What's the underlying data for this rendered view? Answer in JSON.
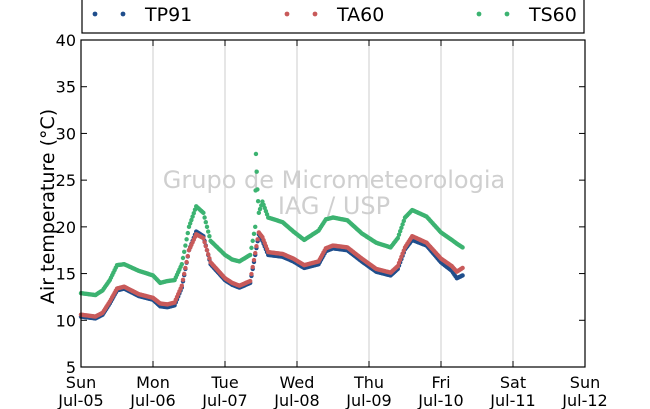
{
  "chart_data": {
    "type": "scatter",
    "ylabel": "Air temperature (°C)",
    "xlabel": "",
    "ylim": [
      5,
      40
    ],
    "xlim": [
      0,
      7
    ],
    "y_ticks": [
      5,
      10,
      15,
      20,
      25,
      30,
      35,
      40
    ],
    "x_ticks": [
      {
        "day": "Sun",
        "date": "Jul-05"
      },
      {
        "day": "Mon",
        "date": "Jul-06"
      },
      {
        "day": "Tue",
        "date": "Jul-07"
      },
      {
        "day": "Wed",
        "date": "Jul-08"
      },
      {
        "day": "Thu",
        "date": "Jul-09"
      },
      {
        "day": "Fri",
        "date": "Jul-10"
      },
      {
        "day": "Sat",
        "date": "Jul-11"
      },
      {
        "day": "Sun",
        "date": "Jul-12"
      }
    ],
    "grid": "vertical",
    "legend_position": "top",
    "watermark": [
      "Grupo de Micrometeorologia",
      "IAG / USP"
    ],
    "series": [
      {
        "name": "TP91",
        "color": "#1f4e8c",
        "points": [
          [
            0,
            10.4
          ],
          [
            0.2,
            10.2
          ],
          [
            0.3,
            10.6
          ],
          [
            0.4,
            11.8
          ],
          [
            0.5,
            13.2
          ],
          [
            0.6,
            13.4
          ],
          [
            0.8,
            12.6
          ],
          [
            1.0,
            12.2
          ],
          [
            1.1,
            11.5
          ],
          [
            1.2,
            11.4
          ],
          [
            1.3,
            11.6
          ],
          [
            1.4,
            13.5
          ],
          [
            1.5,
            17.5
          ],
          [
            1.6,
            19.5
          ],
          [
            1.7,
            19.0
          ],
          [
            1.8,
            16.0
          ],
          [
            2.0,
            14.3
          ],
          [
            2.1,
            13.8
          ],
          [
            2.2,
            13.5
          ],
          [
            2.35,
            14.0
          ],
          [
            2.42,
            17.0
          ],
          [
            2.47,
            19.2
          ],
          [
            2.52,
            18.5
          ],
          [
            2.6,
            17.0
          ],
          [
            2.8,
            16.8
          ],
          [
            2.95,
            16.3
          ],
          [
            3.1,
            15.6
          ],
          [
            3.3,
            16.0
          ],
          [
            3.4,
            17.4
          ],
          [
            3.5,
            17.7
          ],
          [
            3.7,
            17.5
          ],
          [
            3.9,
            16.3
          ],
          [
            4.1,
            15.2
          ],
          [
            4.3,
            14.8
          ],
          [
            4.4,
            15.5
          ],
          [
            4.5,
            17.6
          ],
          [
            4.6,
            18.6
          ],
          [
            4.8,
            18.0
          ],
          [
            5.0,
            16.2
          ],
          [
            5.15,
            15.3
          ],
          [
            5.22,
            14.5
          ],
          [
            5.3,
            14.8
          ]
        ]
      },
      {
        "name": "TA60",
        "color": "#c85a5a",
        "points": [
          [
            0,
            10.6
          ],
          [
            0.2,
            10.4
          ],
          [
            0.3,
            10.8
          ],
          [
            0.4,
            12.0
          ],
          [
            0.5,
            13.4
          ],
          [
            0.6,
            13.6
          ],
          [
            0.8,
            12.8
          ],
          [
            1.0,
            12.4
          ],
          [
            1.1,
            11.8
          ],
          [
            1.2,
            11.7
          ],
          [
            1.3,
            11.9
          ],
          [
            1.4,
            13.7
          ],
          [
            1.5,
            17.5
          ],
          [
            1.6,
            19.2
          ],
          [
            1.7,
            18.8
          ],
          [
            1.8,
            16.2
          ],
          [
            2.0,
            14.5
          ],
          [
            2.1,
            14.0
          ],
          [
            2.2,
            13.7
          ],
          [
            2.35,
            14.2
          ],
          [
            2.42,
            17.2
          ],
          [
            2.47,
            19.4
          ],
          [
            2.52,
            18.9
          ],
          [
            2.6,
            17.3
          ],
          [
            2.8,
            17.1
          ],
          [
            2.95,
            16.6
          ],
          [
            3.1,
            15.9
          ],
          [
            3.3,
            16.3
          ],
          [
            3.4,
            17.7
          ],
          [
            3.5,
            18.0
          ],
          [
            3.7,
            17.8
          ],
          [
            3.9,
            16.6
          ],
          [
            4.1,
            15.5
          ],
          [
            4.3,
            15.1
          ],
          [
            4.4,
            15.8
          ],
          [
            4.5,
            17.8
          ],
          [
            4.6,
            19.0
          ],
          [
            4.8,
            18.3
          ],
          [
            5.0,
            16.6
          ],
          [
            5.15,
            15.8
          ],
          [
            5.22,
            15.2
          ],
          [
            5.3,
            15.6
          ]
        ]
      },
      {
        "name": "TS60",
        "color": "#3cb371",
        "points": [
          [
            0,
            12.9
          ],
          [
            0.2,
            12.7
          ],
          [
            0.3,
            13.2
          ],
          [
            0.4,
            14.3
          ],
          [
            0.5,
            15.9
          ],
          [
            0.6,
            16.0
          ],
          [
            0.8,
            15.3
          ],
          [
            1.0,
            14.8
          ],
          [
            1.1,
            14.0
          ],
          [
            1.2,
            14.2
          ],
          [
            1.3,
            14.3
          ],
          [
            1.4,
            16.0
          ],
          [
            1.5,
            20.0
          ],
          [
            1.6,
            22.2
          ],
          [
            1.7,
            21.5
          ],
          [
            1.8,
            18.5
          ],
          [
            2.0,
            17.0
          ],
          [
            2.1,
            16.5
          ],
          [
            2.2,
            16.3
          ],
          [
            2.35,
            17.0
          ],
          [
            2.42,
            20.0
          ],
          [
            2.45,
            24.0
          ],
          [
            2.43,
            27.8
          ],
          [
            2.47,
            21.5
          ],
          [
            2.52,
            22.7
          ],
          [
            2.6,
            21.0
          ],
          [
            2.8,
            20.5
          ],
          [
            2.95,
            19.5
          ],
          [
            3.1,
            18.6
          ],
          [
            3.3,
            19.6
          ],
          [
            3.4,
            20.8
          ],
          [
            3.5,
            21.0
          ],
          [
            3.7,
            20.7
          ],
          [
            3.9,
            19.3
          ],
          [
            4.1,
            18.3
          ],
          [
            4.3,
            17.8
          ],
          [
            4.4,
            18.8
          ],
          [
            4.5,
            21.0
          ],
          [
            4.6,
            21.8
          ],
          [
            4.8,
            21.1
          ],
          [
            5.0,
            19.4
          ],
          [
            5.15,
            18.6
          ],
          [
            5.22,
            18.2
          ],
          [
            5.3,
            17.8
          ]
        ]
      }
    ]
  }
}
